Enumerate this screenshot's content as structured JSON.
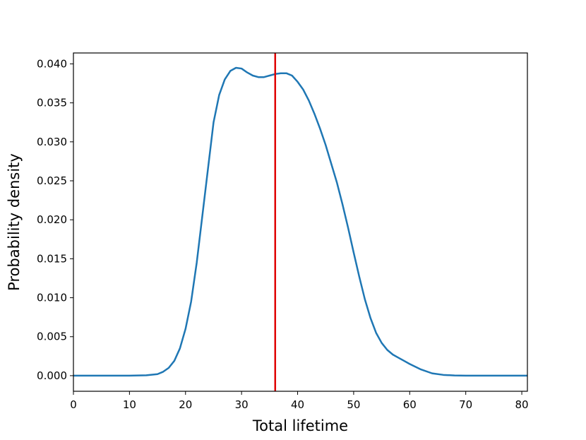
{
  "chart_data": {
    "type": "line",
    "title": "",
    "xlabel": "Total lifetime",
    "ylabel": "Probability density",
    "xlim": [
      0,
      81
    ],
    "ylim": [
      -0.002,
      0.0414
    ],
    "xticks": [
      "0",
      "10",
      "20",
      "30",
      "40",
      "50",
      "60",
      "70",
      "80"
    ],
    "yticks": [
      "0.000",
      "0.005",
      "0.010",
      "0.015",
      "0.020",
      "0.025",
      "0.030",
      "0.035",
      "0.040"
    ],
    "grid": false,
    "legend": "none",
    "series": [
      {
        "color": "#1f77b4",
        "x": [
          0,
          10,
          13,
          15,
          16,
          17,
          18,
          19,
          20,
          21,
          22,
          23,
          24,
          25,
          26,
          27,
          28,
          29,
          30,
          31,
          32,
          33,
          34,
          35,
          36,
          37,
          38,
          39,
          40,
          41,
          42,
          43,
          44,
          45,
          46,
          47,
          48,
          49,
          50,
          51,
          52,
          53,
          54,
          55,
          56,
          57,
          58,
          59,
          60,
          62,
          64,
          66,
          68,
          70,
          75,
          81
        ],
        "y": [
          0.0,
          0.0,
          5e-05,
          0.0002,
          0.0005,
          0.001,
          0.0019,
          0.0035,
          0.006,
          0.0095,
          0.0145,
          0.0205,
          0.0265,
          0.0325,
          0.036,
          0.038,
          0.0391,
          0.0395,
          0.0394,
          0.0389,
          0.0385,
          0.0383,
          0.0383,
          0.0385,
          0.0387,
          0.0388,
          0.0388,
          0.0385,
          0.0377,
          0.0367,
          0.0353,
          0.0336,
          0.0317,
          0.0296,
          0.0272,
          0.0248,
          0.022,
          0.019,
          0.0158,
          0.0127,
          0.0098,
          0.0074,
          0.0055,
          0.0042,
          0.0033,
          0.0027,
          0.0023,
          0.0019,
          0.0015,
          0.0008,
          0.0003,
          0.0001,
          3e-05,
          0.0,
          0.0,
          0.0
        ]
      }
    ],
    "vline": {
      "x": 36,
      "color": "#e00000"
    }
  }
}
